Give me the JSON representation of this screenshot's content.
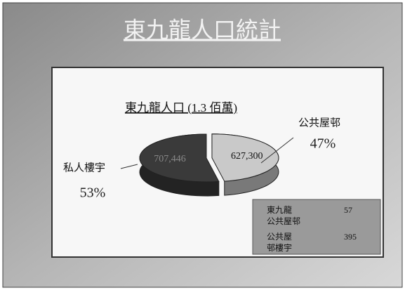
{
  "slide_title": "東九龍人口統計",
  "chart_data": {
    "type": "pie",
    "title": "東九龍人口 (1.3 佰萬)",
    "categories": [
      "公共屋邨",
      "私人樓宇"
    ],
    "values": [
      627300,
      707446
    ],
    "value_labels": [
      "627,300",
      "707,446"
    ],
    "percents": [
      47,
      53
    ],
    "percent_labels": [
      "47%",
      "53%"
    ],
    "colors": [
      "#c9c9c9",
      "#3a3a3a"
    ]
  },
  "table": {
    "rows": [
      [
        "東九龍公共屋邨",
        "57"
      ],
      [
        "公共屋邨樓宇",
        "395"
      ]
    ]
  }
}
